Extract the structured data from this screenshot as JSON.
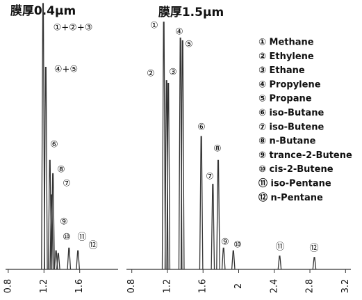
{
  "chart_data": [
    {
      "type": "chromatogram",
      "title": "膜厚0.4μm",
      "x": [
        1.19,
        1.22,
        1.266,
        1.285,
        1.3,
        1.335,
        1.36,
        1.48,
        1.58
      ],
      "values": [
        100,
        76,
        41,
        28,
        36,
        7,
        6,
        8,
        7
      ],
      "peak_labels": [
        "①+②+③",
        "④+⑤",
        "⑥",
        "⑦",
        "⑧",
        "⑨",
        "⑩",
        "⑪",
        "⑫"
      ],
      "xlim": [
        0.77,
        2.03
      ],
      "xticks": [
        0.8,
        1.2,
        1.6
      ],
      "ylim": [
        0,
        100
      ],
      "color": "#333333"
    },
    {
      "type": "chromatogram",
      "title": "膜厚1.5μm",
      "x": [
        1.159,
        1.19,
        1.21,
        1.346,
        1.37,
        1.58,
        1.71,
        1.77,
        1.83,
        1.94,
        2.46,
        2.85
      ],
      "values": [
        93,
        71,
        70,
        87,
        86,
        50,
        32,
        41,
        8,
        7,
        5,
        4.5
      ],
      "peak_labels": [
        "①",
        "②",
        "③",
        "④",
        "⑤",
        "⑥",
        "⑦",
        "⑧",
        "⑨",
        "⑩",
        "⑪",
        "⑫"
      ],
      "xlim": [
        0.74,
        3.26
      ],
      "xticks": [
        0.8,
        1.2,
        1.6,
        2.0,
        2.4,
        2.8,
        3.2
      ],
      "ylim": [
        0,
        100
      ],
      "color": "#333333",
      "legend": [
        "① Methane",
        "② Ethylene",
        "③ Ethane",
        "④ Propylene",
        "⑤ Propane",
        "⑥ iso-Butane",
        "⑦ iso-Butene",
        "⑧ n-Butane",
        "⑨ trance-2-Butene",
        "⑩ cis-2-Butene",
        "⑪ iso-Pentane",
        "⑫ n-Pentane"
      ]
    }
  ]
}
